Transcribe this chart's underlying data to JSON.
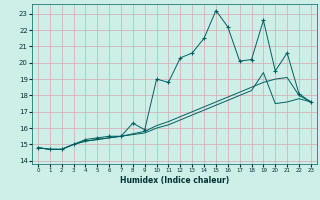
{
  "xlabel": "Humidex (Indice chaleur)",
  "xlim": [
    -0.5,
    23.5
  ],
  "ylim": [
    13.8,
    23.6
  ],
  "yticks": [
    14,
    15,
    16,
    17,
    18,
    19,
    20,
    21,
    22,
    23
  ],
  "xticks": [
    0,
    1,
    2,
    3,
    4,
    5,
    6,
    7,
    8,
    9,
    10,
    11,
    12,
    13,
    14,
    15,
    16,
    17,
    18,
    19,
    20,
    21,
    22,
    23
  ],
  "bg_color": "#ceeee8",
  "grid_color": "#d4a8b0",
  "line_color": "#006060",
  "lines": [
    {
      "x": [
        0,
        1,
        2,
        3,
        4,
        5,
        6,
        7,
        8,
        9,
        10,
        11,
        12,
        13,
        14,
        15,
        16,
        17,
        18,
        19,
        20,
        21,
        22,
        23
      ],
      "y": [
        14.8,
        14.7,
        14.7,
        15.0,
        15.3,
        15.4,
        15.5,
        15.5,
        16.3,
        15.9,
        19.0,
        18.8,
        20.3,
        20.6,
        21.5,
        23.2,
        22.2,
        20.1,
        20.2,
        22.6,
        19.5,
        20.6,
        18.1,
        17.6
      ],
      "has_marker": true
    },
    {
      "x": [
        0,
        1,
        2,
        3,
        4,
        5,
        6,
        7,
        8,
        9,
        10,
        11,
        12,
        13,
        14,
        15,
        16,
        17,
        18,
        19,
        20,
        21,
        22,
        23
      ],
      "y": [
        14.8,
        14.7,
        14.7,
        15.0,
        15.2,
        15.3,
        15.4,
        15.5,
        15.6,
        15.7,
        16.0,
        16.2,
        16.5,
        16.8,
        17.1,
        17.4,
        17.7,
        18.0,
        18.3,
        19.4,
        17.5,
        17.6,
        17.8,
        17.6
      ],
      "has_marker": false
    },
    {
      "x": [
        0,
        1,
        2,
        3,
        4,
        5,
        6,
        7,
        8,
        9,
        10,
        11,
        12,
        13,
        14,
        15,
        16,
        17,
        18,
        19,
        20,
        21,
        22,
        23
      ],
      "y": [
        14.8,
        14.7,
        14.7,
        15.0,
        15.2,
        15.3,
        15.4,
        15.5,
        15.65,
        15.8,
        16.15,
        16.4,
        16.7,
        17.0,
        17.3,
        17.6,
        17.9,
        18.2,
        18.5,
        18.8,
        19.0,
        19.1,
        18.0,
        17.6
      ],
      "has_marker": false
    }
  ],
  "figsize": [
    3.2,
    2.0
  ],
  "dpi": 100
}
